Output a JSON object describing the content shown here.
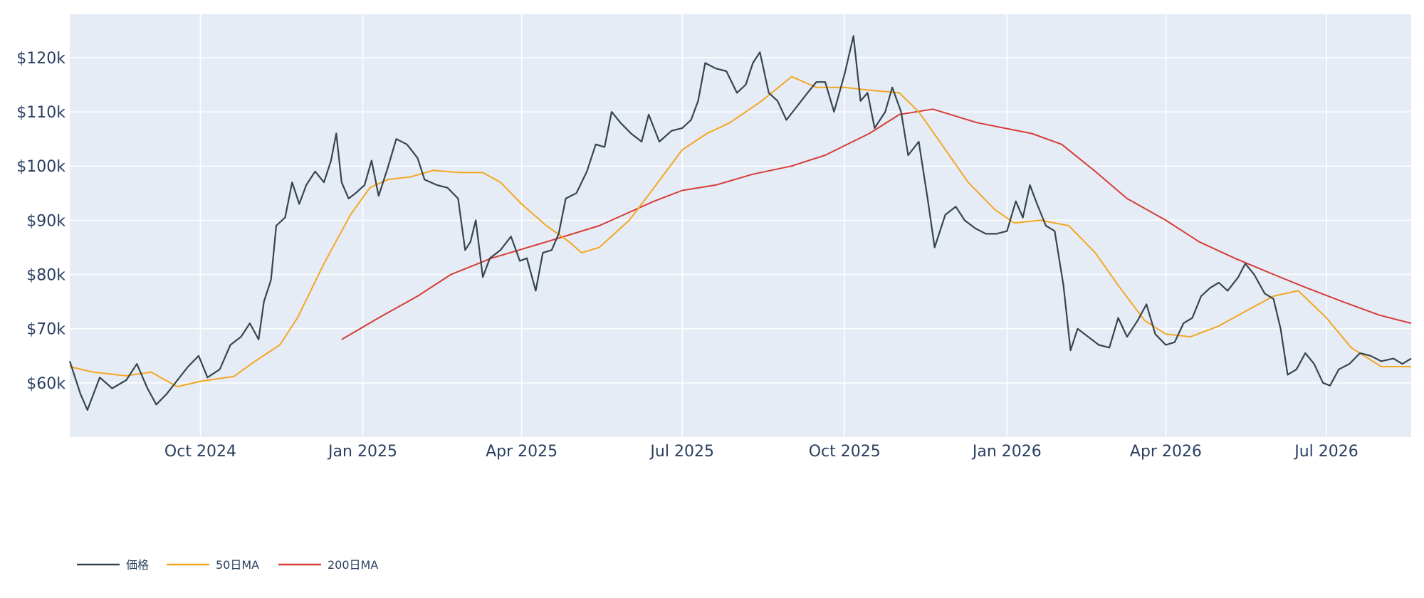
{
  "chart_data": {
    "type": "line",
    "title": "",
    "xlabel": "",
    "ylabel": "",
    "xlim": [
      "2024-07-19",
      "2026-08-18"
    ],
    "ylim": [
      50000,
      128000
    ],
    "grid": true,
    "legend_position": "bottom-left",
    "x_ticks": [
      {
        "date": "2024-10-01",
        "label": "Oct 2024"
      },
      {
        "date": "2025-01-01",
        "label": "Jan 2025"
      },
      {
        "date": "2025-04-01",
        "label": "Apr 2025"
      },
      {
        "date": "2025-07-01",
        "label": "Jul 2025"
      },
      {
        "date": "2025-10-01",
        "label": "Oct 2025"
      },
      {
        "date": "2026-01-01",
        "label": "Jan 2026"
      },
      {
        "date": "2026-04-01",
        "label": "Apr 2026"
      },
      {
        "date": "2026-07-01",
        "label": "Jul 2026"
      }
    ],
    "y_ticks": [
      {
        "value": 60000,
        "label": "$60k"
      },
      {
        "value": 70000,
        "label": "$70k"
      },
      {
        "value": 80000,
        "label": "$80k"
      },
      {
        "value": 90000,
        "label": "$90k"
      },
      {
        "value": 100000,
        "label": "$100k"
      },
      {
        "value": 110000,
        "label": "$110k"
      },
      {
        "value": 120000,
        "label": "$120k"
      }
    ],
    "colors": {
      "plot_bg": "#e5ecf6",
      "grid": "#ffffff",
      "text": "#2a3f5f"
    },
    "series": [
      {
        "name": "価格",
        "color": "#36454f",
        "points": [
          [
            "2024-07-19",
            64000
          ],
          [
            "2024-07-25",
            58000
          ],
          [
            "2024-07-29",
            55000
          ],
          [
            "2024-08-05",
            61000
          ],
          [
            "2024-08-12",
            59000
          ],
          [
            "2024-08-20",
            60500
          ],
          [
            "2024-08-26",
            63500
          ],
          [
            "2024-09-01",
            59000
          ],
          [
            "2024-09-06",
            56000
          ],
          [
            "2024-09-12",
            58000
          ],
          [
            "2024-09-18",
            60500
          ],
          [
            "2024-09-24",
            63000
          ],
          [
            "2024-09-30",
            65000
          ],
          [
            "2024-10-05",
            61000
          ],
          [
            "2024-10-12",
            62500
          ],
          [
            "2024-10-18",
            67000
          ],
          [
            "2024-10-24",
            68500
          ],
          [
            "2024-10-29",
            71000
          ],
          [
            "2024-11-03",
            68000
          ],
          [
            "2024-11-06",
            75000
          ],
          [
            "2024-11-10",
            79000
          ],
          [
            "2024-11-13",
            89000
          ],
          [
            "2024-11-18",
            90500
          ],
          [
            "2024-11-22",
            97000
          ],
          [
            "2024-11-26",
            93000
          ],
          [
            "2024-11-30",
            96500
          ],
          [
            "2024-12-05",
            99000
          ],
          [
            "2024-12-10",
            97000
          ],
          [
            "2024-12-14",
            101000
          ],
          [
            "2024-12-17",
            106000
          ],
          [
            "2024-12-20",
            97000
          ],
          [
            "2024-12-24",
            94000
          ],
          [
            "2024-12-28",
            95000
          ],
          [
            "2025-01-02",
            96500
          ],
          [
            "2025-01-06",
            101000
          ],
          [
            "2025-01-10",
            94500
          ],
          [
            "2025-01-15",
            99500
          ],
          [
            "2025-01-20",
            105000
          ],
          [
            "2025-01-26",
            104000
          ],
          [
            "2025-02-01",
            101500
          ],
          [
            "2025-02-05",
            97500
          ],
          [
            "2025-02-12",
            96500
          ],
          [
            "2025-02-18",
            96000
          ],
          [
            "2025-02-24",
            94000
          ],
          [
            "2025-02-28",
            84500
          ],
          [
            "2025-03-03",
            86000
          ],
          [
            "2025-03-06",
            90000
          ],
          [
            "2025-03-10",
            79500
          ],
          [
            "2025-03-14",
            83000
          ],
          [
            "2025-03-20",
            84500
          ],
          [
            "2025-03-26",
            87000
          ],
          [
            "2025-03-31",
            82500
          ],
          [
            "2025-04-04",
            83000
          ],
          [
            "2025-04-09",
            77000
          ],
          [
            "2025-04-13",
            84000
          ],
          [
            "2025-04-18",
            84500
          ],
          [
            "2025-04-22",
            87500
          ],
          [
            "2025-04-26",
            94000
          ],
          [
            "2025-05-02",
            95000
          ],
          [
            "2025-05-08",
            99000
          ],
          [
            "2025-05-13",
            104000
          ],
          [
            "2025-05-18",
            103500
          ],
          [
            "2025-05-22",
            110000
          ],
          [
            "2025-05-27",
            108000
          ],
          [
            "2025-06-02",
            106000
          ],
          [
            "2025-06-08",
            104500
          ],
          [
            "2025-06-12",
            109500
          ],
          [
            "2025-06-18",
            104500
          ],
          [
            "2025-06-25",
            106500
          ],
          [
            "2025-07-01",
            107000
          ],
          [
            "2025-07-06",
            108500
          ],
          [
            "2025-07-10",
            112000
          ],
          [
            "2025-07-14",
            119000
          ],
          [
            "2025-07-20",
            118000
          ],
          [
            "2025-07-26",
            117500
          ],
          [
            "2025-08-01",
            113500
          ],
          [
            "2025-08-06",
            115000
          ],
          [
            "2025-08-10",
            119000
          ],
          [
            "2025-08-14",
            121000
          ],
          [
            "2025-08-19",
            113500
          ],
          [
            "2025-08-24",
            112000
          ],
          [
            "2025-08-29",
            108500
          ],
          [
            "2025-09-04",
            111000
          ],
          [
            "2025-09-10",
            113500
          ],
          [
            "2025-09-15",
            115500
          ],
          [
            "2025-09-20",
            115500
          ],
          [
            "2025-09-25",
            110000
          ],
          [
            "2025-10-01",
            117000
          ],
          [
            "2025-10-06",
            124000
          ],
          [
            "2025-10-10",
            112000
          ],
          [
            "2025-10-14",
            113500
          ],
          [
            "2025-10-18",
            107000
          ],
          [
            "2025-10-24",
            110000
          ],
          [
            "2025-10-28",
            114500
          ],
          [
            "2025-11-02",
            110000
          ],
          [
            "2025-11-06",
            102000
          ],
          [
            "2025-11-12",
            104500
          ],
          [
            "2025-11-17",
            94000
          ],
          [
            "2025-11-21",
            85000
          ],
          [
            "2025-11-27",
            91000
          ],
          [
            "2025-12-03",
            92500
          ],
          [
            "2025-12-08",
            90000
          ],
          [
            "2025-12-14",
            88500
          ],
          [
            "2025-12-20",
            87500
          ],
          [
            "2025-12-26",
            87500
          ],
          [
            "2026-01-01",
            88000
          ],
          [
            "2026-01-06",
            93500
          ],
          [
            "2026-01-10",
            90500
          ],
          [
            "2026-01-14",
            96500
          ],
          [
            "2026-01-18",
            93000
          ],
          [
            "2026-01-23",
            89000
          ],
          [
            "2026-01-28",
            88000
          ],
          [
            "2026-02-02",
            78000
          ],
          [
            "2026-02-06",
            66000
          ],
          [
            "2026-02-10",
            70000
          ],
          [
            "2026-02-16",
            68500
          ],
          [
            "2026-02-22",
            67000
          ],
          [
            "2026-02-28",
            66500
          ],
          [
            "2026-03-05",
            72000
          ],
          [
            "2026-03-10",
            68500
          ],
          [
            "2026-03-16",
            71500
          ],
          [
            "2026-03-21",
            74500
          ],
          [
            "2026-03-26",
            69000
          ],
          [
            "2026-04-01",
            67000
          ],
          [
            "2026-04-06",
            67500
          ],
          [
            "2026-04-11",
            71000
          ],
          [
            "2026-04-16",
            72000
          ],
          [
            "2026-04-21",
            76000
          ],
          [
            "2026-04-26",
            77500
          ],
          [
            "2026-05-01",
            78500
          ],
          [
            "2026-05-06",
            77000
          ],
          [
            "2026-05-12",
            79500
          ],
          [
            "2026-05-16",
            82000
          ],
          [
            "2026-05-21",
            80000
          ],
          [
            "2026-05-27",
            76500
          ],
          [
            "2026-06-01",
            75500
          ],
          [
            "2026-06-05",
            70000
          ],
          [
            "2026-06-09",
            61500
          ],
          [
            "2026-06-14",
            62500
          ],
          [
            "2026-06-19",
            65500
          ],
          [
            "2026-06-24",
            63500
          ],
          [
            "2026-06-29",
            60000
          ],
          [
            "2026-07-03",
            59500
          ],
          [
            "2026-07-08",
            62500
          ],
          [
            "2026-07-14",
            63500
          ],
          [
            "2026-07-20",
            65500
          ],
          [
            "2026-07-26",
            65000
          ],
          [
            "2026-08-01",
            64000
          ],
          [
            "2026-08-08",
            64500
          ],
          [
            "2026-08-13",
            63500
          ],
          [
            "2026-08-18",
            64500
          ]
        ]
      },
      {
        "name": "50日MA",
        "color": "#f5a623",
        "points": [
          [
            "2024-07-19",
            63000
          ],
          [
            "2024-08-01",
            62000
          ],
          [
            "2024-08-20",
            61300
          ],
          [
            "2024-09-03",
            62000
          ],
          [
            "2024-09-18",
            59300
          ],
          [
            "2024-10-01",
            60300
          ],
          [
            "2024-10-20",
            61200
          ],
          [
            "2024-11-01",
            64000
          ],
          [
            "2024-11-15",
            67000
          ],
          [
            "2024-11-25",
            72000
          ],
          [
            "2024-12-10",
            82000
          ],
          [
            "2024-12-25",
            91000
          ],
          [
            "2025-01-05",
            96000
          ],
          [
            "2025-01-15",
            97500
          ],
          [
            "2025-01-28",
            98000
          ],
          [
            "2025-02-10",
            99200
          ],
          [
            "2025-02-25",
            98800
          ],
          [
            "2025-03-10",
            98800
          ],
          [
            "2025-03-20",
            97000
          ],
          [
            "2025-04-01",
            93000
          ],
          [
            "2025-04-15",
            89000
          ],
          [
            "2025-04-28",
            86000
          ],
          [
            "2025-05-05",
            84000
          ],
          [
            "2025-05-15",
            85000
          ],
          [
            "2025-06-01",
            90000
          ],
          [
            "2025-06-15",
            96000
          ],
          [
            "2025-07-01",
            103000
          ],
          [
            "2025-07-15",
            106000
          ],
          [
            "2025-07-28",
            108000
          ],
          [
            "2025-08-15",
            112000
          ],
          [
            "2025-09-01",
            116500
          ],
          [
            "2025-09-15",
            114500
          ],
          [
            "2025-10-01",
            114500
          ],
          [
            "2025-10-15",
            114000
          ],
          [
            "2025-11-01",
            113500
          ],
          [
            "2025-11-12",
            110000
          ],
          [
            "2025-11-25",
            104000
          ],
          [
            "2025-12-10",
            97000
          ],
          [
            "2025-12-25",
            92000
          ],
          [
            "2026-01-05",
            89500
          ],
          [
            "2026-01-20",
            90000
          ],
          [
            "2026-02-05",
            89000
          ],
          [
            "2026-02-20",
            84000
          ],
          [
            "2026-03-05",
            78000
          ],
          [
            "2026-03-20",
            71500
          ],
          [
            "2026-04-01",
            69000
          ],
          [
            "2026-04-15",
            68500
          ],
          [
            "2026-05-01",
            70500
          ],
          [
            "2026-05-15",
            73000
          ],
          [
            "2026-06-01",
            76000
          ],
          [
            "2026-06-15",
            77000
          ],
          [
            "2026-07-01",
            72000
          ],
          [
            "2026-07-15",
            66500
          ],
          [
            "2026-08-01",
            63000
          ],
          [
            "2026-08-18",
            63000
          ]
        ]
      },
      {
        "name": "200日MA",
        "color": "#d63d36",
        "points": [
          [
            "2024-12-20",
            68000
          ],
          [
            "2025-01-10",
            72000
          ],
          [
            "2025-02-01",
            76000
          ],
          [
            "2025-02-20",
            80000
          ],
          [
            "2025-03-15",
            83000
          ],
          [
            "2025-04-15",
            86000
          ],
          [
            "2025-05-15",
            89000
          ],
          [
            "2025-06-15",
            93500
          ],
          [
            "2025-07-01",
            95500
          ],
          [
            "2025-07-20",
            96500
          ],
          [
            "2025-08-10",
            98500
          ],
          [
            "2025-09-01",
            100000
          ],
          [
            "2025-09-20",
            102000
          ],
          [
            "2025-10-15",
            106000
          ],
          [
            "2025-11-01",
            109500
          ],
          [
            "2025-11-20",
            110500
          ],
          [
            "2025-12-15",
            108000
          ],
          [
            "2026-01-15",
            106000
          ],
          [
            "2026-02-01",
            104000
          ],
          [
            "2026-02-20",
            99000
          ],
          [
            "2026-03-10",
            94000
          ],
          [
            "2026-04-01",
            90000
          ],
          [
            "2026-04-20",
            86000
          ],
          [
            "2026-05-10",
            83000
          ],
          [
            "2026-06-01",
            80000
          ],
          [
            "2026-06-20",
            77500
          ],
          [
            "2026-07-10",
            75000
          ],
          [
            "2026-07-31",
            72500
          ],
          [
            "2026-08-18",
            71000
          ]
        ]
      }
    ]
  }
}
